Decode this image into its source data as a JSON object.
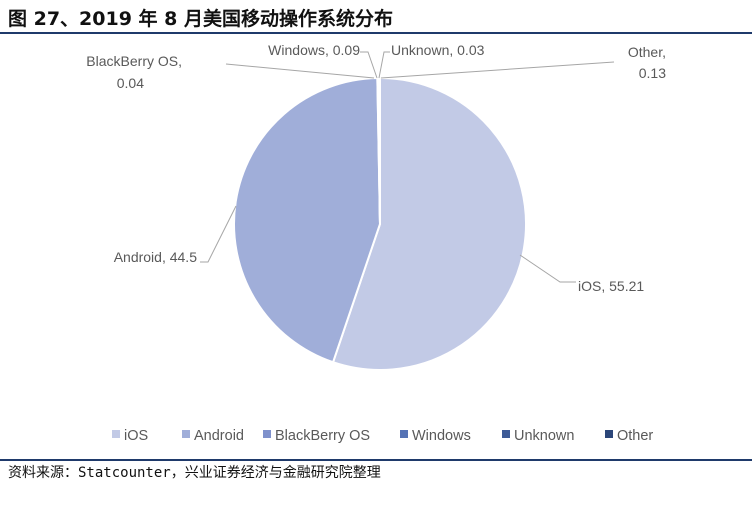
{
  "title": "图 27、2019 年 8 月美国移动操作系统分布",
  "source": "资料来源：Statcounter，兴业证券经济与金融研究院整理",
  "chart_data": {
    "type": "pie",
    "categories": [
      "iOS",
      "Android",
      "BlackBerry OS",
      "Windows",
      "Unknown",
      "Other"
    ],
    "values": [
      55.21,
      44.5,
      0.04,
      0.09,
      0.03,
      0.13
    ],
    "data_labels": [
      [
        "iOS, ",
        "55.21"
      ],
      [
        "Android, 44.5"
      ],
      [
        "BlackBerry OS,",
        "0.04"
      ],
      [
        "Windows, 0.09"
      ],
      [
        "Unknown, 0.03"
      ],
      [
        "Other,",
        "0.13"
      ]
    ],
    "colors": [
      "#c2cae6",
      "#a0aed9",
      "#7f91cc",
      "#5573b5",
      "#3d5a96",
      "#2b4679"
    ],
    "legend": "bottom"
  }
}
